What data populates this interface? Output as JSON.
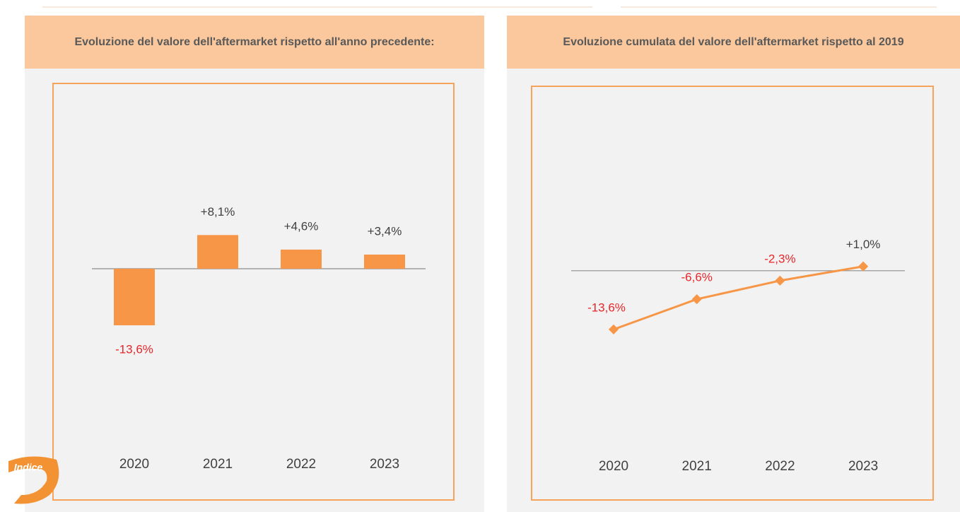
{
  "chart_data": [
    {
      "type": "bar",
      "title": "Evoluzione del valore dell'aftermarket rispetto all'anno precedente:",
      "categories": [
        "2020",
        "2021",
        "2022",
        "2023"
      ],
      "values": [
        -13.6,
        8.1,
        4.6,
        3.4
      ],
      "value_labels": [
        "-13,6%",
        "+8,1%",
        "+4,6%",
        "+3,4%"
      ],
      "color": "#f79646",
      "negative_label_color": "#e8262a",
      "ylim": [
        -37.4,
        40.8
      ]
    },
    {
      "type": "line",
      "title": "Evoluzione cumulata del valore dell'aftermarket rispetto al 2019",
      "categories": [
        "2020",
        "2021",
        "2022",
        "2023"
      ],
      "values": [
        -13.6,
        -6.6,
        -2.3,
        1.0
      ],
      "value_labels": [
        "-13,6%",
        "-6,6%",
        "-2,3%",
        "+1,0%"
      ],
      "color": "#f79646",
      "negative_label_color": "#e8262a",
      "ylim": [
        -35.6,
        39.8
      ]
    }
  ],
  "badge": "Indice"
}
